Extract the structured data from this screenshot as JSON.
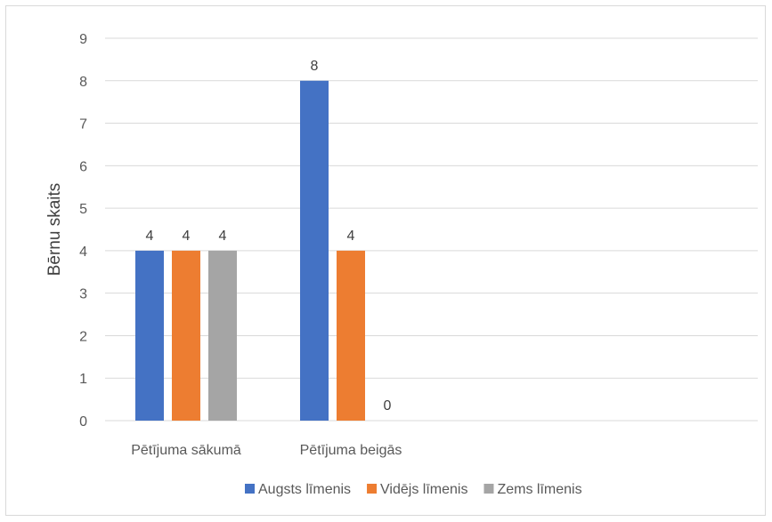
{
  "chart_data": {
    "type": "bar",
    "title": "",
    "xlabel": "",
    "ylabel": "Bērnu skaits",
    "ylim": [
      0,
      9
    ],
    "yticks": [
      0,
      1,
      2,
      3,
      4,
      5,
      6,
      7,
      8,
      9
    ],
    "grid": true,
    "legend_position": "bottom",
    "categories": [
      "Pētījuma sākumā",
      "Pētījuma beigās"
    ],
    "series": [
      {
        "name": "Augsts līmenis",
        "color": "#4472c4",
        "values": [
          4,
          8
        ]
      },
      {
        "name": "Vidējs līmenis",
        "color": "#ed7d31",
        "values": [
          4,
          4
        ]
      },
      {
        "name": "Zems līmenis",
        "color": "#a5a5a5",
        "values": [
          4,
          0
        ]
      }
    ],
    "data_labels": [
      [
        "4",
        "8"
      ],
      [
        "4",
        "4"
      ],
      [
        "4",
        "0"
      ]
    ]
  }
}
